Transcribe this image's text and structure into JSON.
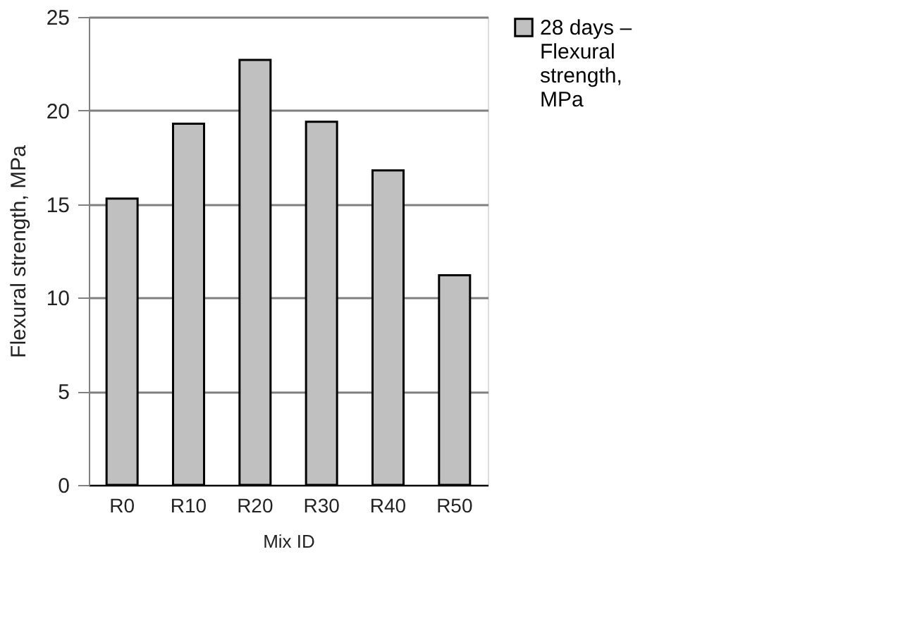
{
  "chart_data": {
    "type": "bar",
    "xlabel": "Mix ID",
    "ylabel": "Flexural strength, MPa",
    "categories": [
      "R0",
      "R10",
      "R20",
      "R30",
      "R40",
      "R50"
    ],
    "series": [
      {
        "name": "28 days – Flexural strength, MPa",
        "color": "#c0c0c0",
        "values": [
          15.3,
          19.3,
          22.7,
          19.4,
          16.8,
          11.2
        ]
      }
    ],
    "ylim": [
      0,
      25
    ],
    "yticks": [
      0,
      5,
      10,
      15,
      20,
      25
    ],
    "grid": "y",
    "legend": "right"
  }
}
